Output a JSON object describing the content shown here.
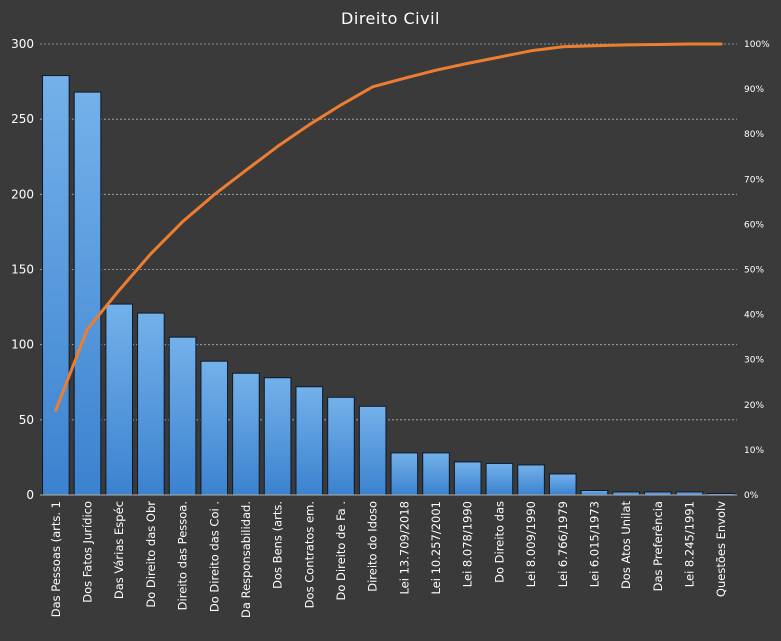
{
  "chart_data": {
    "type": "bar",
    "title": "Direito Civil",
    "categories": [
      "Das Pessoas (arts. 1",
      "Dos Fatos Jurídico",
      "Das Várias Espéc",
      "Do Direito das Obr",
      "Direito das Pessoa.",
      "Do Direito das Coi .",
      "Da Responsabilidad.",
      "Dos Bens (arts.",
      "Dos Contratos em.",
      "Do Direito de Fa .",
      "Direito do Idoso",
      "Lei 13.709/2018",
      "Lei 10.257/2001",
      "Lei 8.078/1990",
      "Do Direito das",
      "Lei 8.009/1990",
      "Lei 6.766/1979",
      "Lei 6.015/1973",
      "Dos Atos Unilat",
      "Das Preferência",
      "Lei 8.245/1991",
      "Questões Envolv"
    ],
    "series": [
      {
        "type": "bar",
        "axis": "left",
        "values": [
          279,
          268,
          127,
          121,
          105,
          89,
          81,
          78,
          72,
          65,
          59,
          28,
          28,
          22,
          21,
          20,
          14,
          3,
          2,
          2,
          2,
          1
        ]
      },
      {
        "type": "line",
        "axis": "right",
        "values": [
          18.8,
          36.8,
          45.4,
          53.5,
          60.6,
          66.6,
          72.0,
          77.3,
          82.1,
          86.5,
          90.5,
          92.4,
          94.2,
          95.7,
          97.1,
          98.5,
          99.4,
          99.6,
          99.8,
          99.9,
          100.0,
          100.0
        ]
      }
    ],
    "yticks_left": [
      "0",
      "50",
      "100",
      "150",
      "200",
      "250",
      "300"
    ],
    "yticks_right": [
      "0%",
      "10%",
      "20%",
      "30%",
      "40%",
      "50%",
      "60%",
      "70%",
      "80%",
      "90%",
      "100%"
    ],
    "ylim": [
      0,
      300
    ],
    "ylim_right": [
      0,
      100
    ],
    "grid": true,
    "colors": {
      "background": "#3a3a3a",
      "bar_light": "#74b1ea",
      "bar_dark": "#3b82cf",
      "bar_border": "#0b1a2c",
      "line": "#ed7d31",
      "grid": "#b0b0b0",
      "text": "#ffffff"
    }
  }
}
